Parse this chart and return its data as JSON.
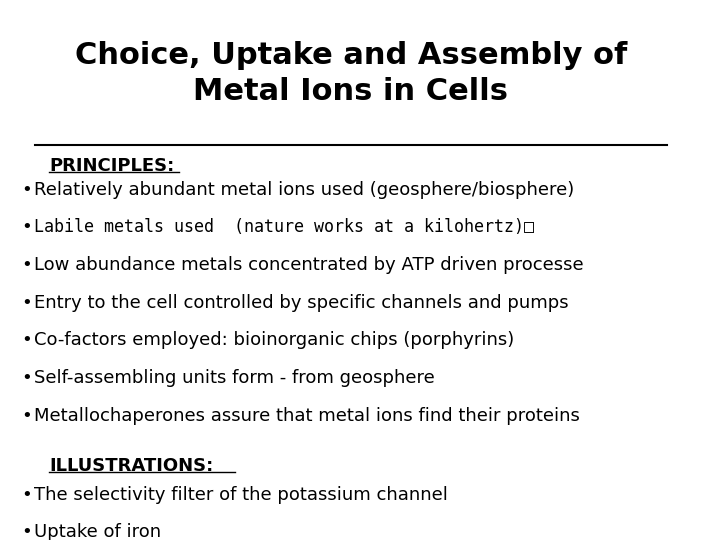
{
  "title_line1": "Choice, Uptake and Assembly of",
  "title_line2": "Metal Ions in Cells",
  "background_color": "#ffffff",
  "text_color": "#000000",
  "title_fontsize": 22,
  "section_fontsize": 13,
  "bullet_fontsize": 13,
  "principles_label": "PRINCIPLES:",
  "illustrations_label": "ILLUSTRATIONS:",
  "principles_bullets": [
    "Relatively abundant metal ions used (geosphere/biosphere)",
    "Labile metals used  (nature works at a kilohertz)□",
    "Low abundance metals concentrated by ATP driven processe",
    "Entry to the cell controlled by specific channels and pumps",
    "Co-factors employed: bioinorganic chips (porphyrins)",
    "Self-assembling units form - from geosphere",
    "Metallochaperones assure that metal ions find their proteins"
  ],
  "illustrations_bullets": [
    "The selectivity filter of the potassium channel",
    "Uptake of iron"
  ],
  "labile_line_index": 1
}
